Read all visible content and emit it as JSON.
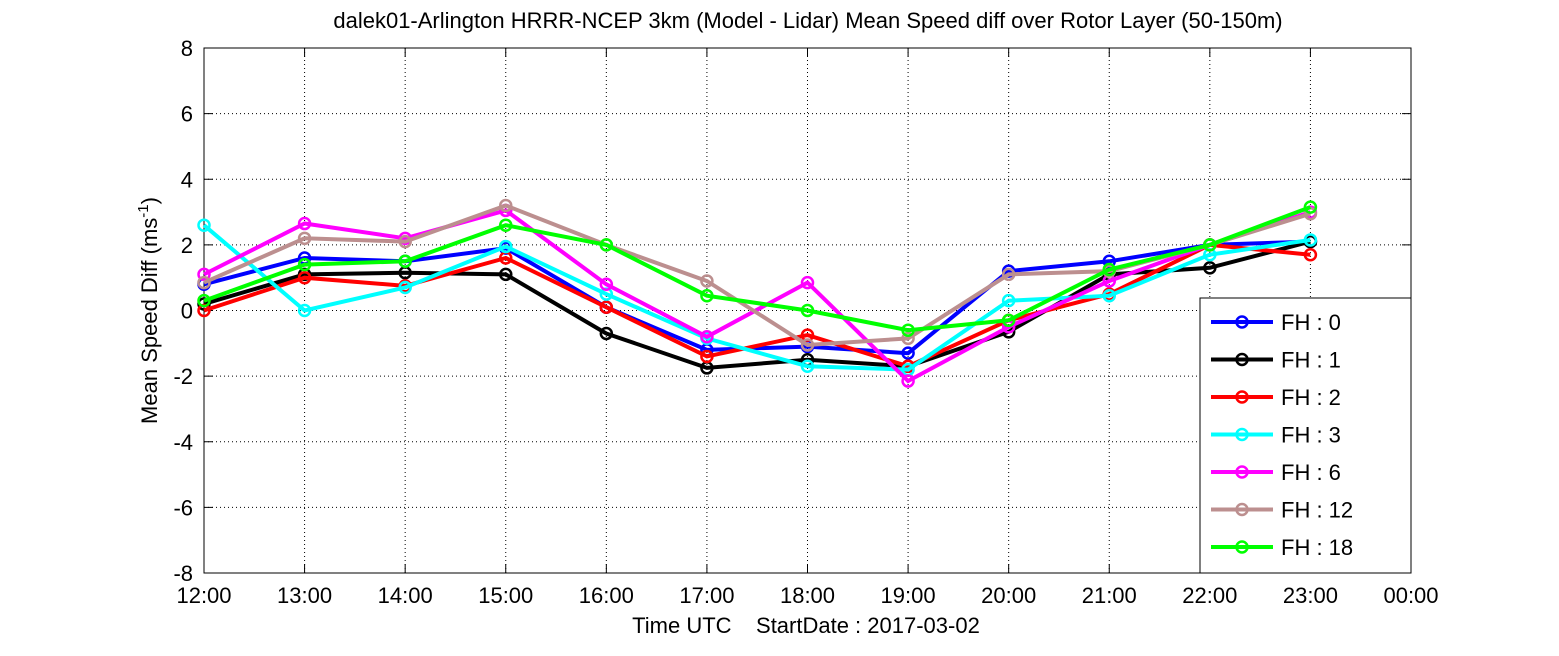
{
  "chart_data": {
    "type": "line",
    "title": "dalek01-Arlington HRRR-NCEP 3km (Model - Lidar) Mean Speed diff over Rotor Layer (50-150m)",
    "xlabel": "Time UTC    StartDate : 2017-03-02",
    "ylabel": "Mean Speed Diff (ms",
    "ylabel_sup": "-1",
    "ylabel_close": ")",
    "x_ticks": [
      "12:00",
      "13:00",
      "14:00",
      "15:00",
      "16:00",
      "17:00",
      "18:00",
      "19:00",
      "20:00",
      "21:00",
      "22:00",
      "23:00",
      "00:00"
    ],
    "x": [
      "12:00",
      "13:00",
      "14:00",
      "15:00",
      "16:00",
      "17:00",
      "18:00",
      "19:00",
      "20:00",
      "21:00",
      "22:00",
      "23:00"
    ],
    "y_ticks": [
      8,
      6,
      4,
      2,
      0,
      -2,
      -4,
      -6,
      -8
    ],
    "ylim": [
      -8,
      8
    ],
    "grid": true,
    "legend_position": "bottom-right",
    "series": [
      {
        "name": "FH : 0",
        "color": "#0000ff",
        "values": [
          0.8,
          1.6,
          1.5,
          1.9,
          0.1,
          -1.2,
          -1.1,
          -1.3,
          1.2,
          1.5,
          2.0,
          2.1
        ]
      },
      {
        "name": "FH : 1",
        "color": "#000000",
        "values": [
          0.2,
          1.1,
          1.15,
          1.1,
          -0.7,
          -1.75,
          -1.5,
          -1.7,
          -0.65,
          1.1,
          1.3,
          2.1
        ]
      },
      {
        "name": "FH : 2",
        "color": "#ff0000",
        "values": [
          0.0,
          1.0,
          0.75,
          1.6,
          0.1,
          -1.4,
          -0.75,
          -1.7,
          -0.3,
          0.5,
          2.0,
          1.7
        ]
      },
      {
        "name": "FH : 3",
        "color": "#00ffff",
        "values": [
          2.6,
          0.0,
          0.7,
          1.95,
          0.5,
          -0.85,
          -1.7,
          -1.8,
          0.3,
          0.45,
          1.7,
          2.15
        ]
      },
      {
        "name": "FH : 6",
        "color": "#ff00ff",
        "values": [
          1.1,
          2.65,
          2.2,
          3.05,
          0.8,
          -0.8,
          0.85,
          -2.15,
          -0.5,
          0.9,
          2.0,
          3.0
        ]
      },
      {
        "name": "FH : 12",
        "color": "#bc8f8f",
        "values": [
          0.85,
          2.2,
          2.1,
          3.2,
          2.0,
          0.9,
          -1.05,
          -0.85,
          1.1,
          1.2,
          2.0,
          2.95
        ]
      },
      {
        "name": "FH : 18",
        "color": "#00ff00",
        "values": [
          0.3,
          1.4,
          1.5,
          2.6,
          2.0,
          0.45,
          0.0,
          -0.6,
          -0.3,
          1.25,
          2.0,
          3.15
        ]
      }
    ]
  }
}
